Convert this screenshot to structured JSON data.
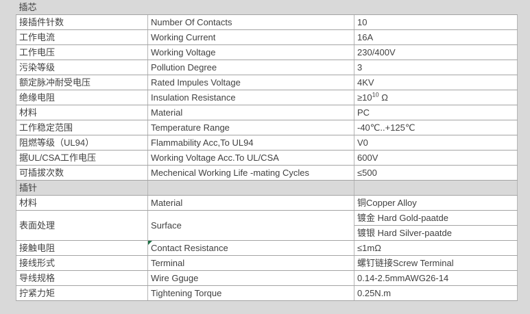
{
  "colors": {
    "page_background": "#d9d9d9",
    "cell_background": "#ffffff",
    "section_background": "#d9d9d9",
    "border_horizontal": "#a3a3a3",
    "border_vertical": "#b5b5b5",
    "text": "#404040",
    "comment_marker_green": "#1e7145"
  },
  "table": {
    "sections": [
      {
        "header": "插芯",
        "rows": [
          {
            "cn": "接插件针数",
            "en": "Number Of Contacts",
            "value": "10"
          },
          {
            "cn": "工作电流",
            "en": "Working Current",
            "value": "16A"
          },
          {
            "cn": "工作电压",
            "en": "Working Voltage",
            "value": "230/400V"
          },
          {
            "cn": "污染等级",
            "en": "Pollution Degree",
            "value": "3"
          },
          {
            "cn": "额定脉冲耐受电压",
            "en": "Rated Impules Voltage",
            "value": "4KV"
          },
          {
            "cn": "绝缘电阻",
            "en": "Insulation Resistance",
            "value_base": "≥10",
            "value_sup": "10",
            "value_tail": " Ω"
          },
          {
            "cn": "材料",
            "en": "Material",
            "value": "PC"
          },
          {
            "cn": "工作稳定范围",
            "en": "Temperature Range",
            "value": "-40℃..+125℃"
          },
          {
            "cn": "阻燃等级（UL94）",
            "en": "Flammability Acc,To UL94",
            "value": "V0"
          },
          {
            "cn": "据UL/CSA工作电压",
            "en": "Working Voltage Acc.To UL/CSA",
            "value": "600V"
          },
          {
            "cn": "可插拔次数",
            "en": "Mechenical Working Life -mating Cycles",
            "value": "≤500"
          }
        ]
      },
      {
        "header": "插针",
        "rows": [
          {
            "cn": "材料",
            "en": "Material",
            "value": "铜Copper Alloy"
          },
          {
            "cn": "表面处理",
            "en": "Surface",
            "values": [
              "镀金 Hard Gold-paatde",
              "镀银 Hard Silver-paatde"
            ]
          },
          {
            "cn": "接触电阻",
            "en": "Contact Resistance",
            "value": "≤1mΩ"
          },
          {
            "cn": "接线形式",
            "en": "Terminal",
            "value": "螺钉链接Screw Terminal"
          },
          {
            "cn": "导线规格",
            "en": "Wire Gguge",
            "value": "0.14-2.5mmAWG26-14"
          },
          {
            "cn": "拧紧力矩",
            "en": "Tightening Torque",
            "value": "0.25N.m"
          }
        ]
      }
    ]
  }
}
